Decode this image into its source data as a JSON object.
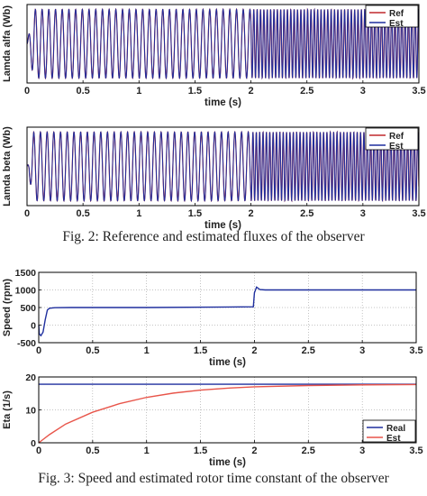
{
  "captions": {
    "fig2": "Fig. 2: Reference and estimated fluxes of the observer",
    "fig3": "Fig. 3: Speed and estimated rotor time constant of the observer"
  },
  "colors": {
    "ref": "#c0282d",
    "est": "#1f2f9e",
    "real": "#1f2f9e",
    "eta_est": "#e8554a",
    "axis": "#000000",
    "grid": "#8a8a8a"
  },
  "chart_data": [
    {
      "type": "line",
      "xlabel": "time (s)",
      "ylabel": "Lamda alfa (Wb)",
      "xlim": [
        0,
        3.5
      ],
      "ylim": [
        -0.65,
        0.65
      ],
      "x_ticks": [
        "0",
        "0.5",
        "1",
        "1.5",
        "2",
        "2.5",
        "3",
        "3.5"
      ],
      "y_ticks": [],
      "grid": false,
      "legend": "top-right",
      "legend_entries": [
        "Ref",
        "Est"
      ],
      "signal": {
        "kind": "sinusoid",
        "amplitude_wb": 0.57,
        "freq_hz_before": 16.7,
        "freq_hz_after": 33.3,
        "freq_step_time_s": 2.0,
        "phase": "sin"
      },
      "series": [
        {
          "name": "Ref",
          "color": "#c0282d"
        },
        {
          "name": "Est",
          "color": "#1f2f9e"
        }
      ]
    },
    {
      "type": "line",
      "xlabel": "time (s)",
      "ylabel": "Lamda beta (Wb)",
      "xlim": [
        0,
        3.5
      ],
      "ylim": [
        -0.65,
        0.65
      ],
      "x_ticks": [
        "0",
        "0.5",
        "1",
        "1.5",
        "2",
        "2.5",
        "3",
        "3.5"
      ],
      "y_ticks": [],
      "grid": false,
      "legend": "top-right",
      "legend_entries": [
        "Ref",
        "Est"
      ],
      "signal": {
        "kind": "sinusoid",
        "amplitude_wb": 0.57,
        "freq_hz_before": 16.7,
        "freq_hz_after": 33.3,
        "freq_step_time_s": 2.0,
        "phase": "cos"
      },
      "series": [
        {
          "name": "Ref",
          "color": "#c0282d"
        },
        {
          "name": "Est",
          "color": "#1f2f9e"
        }
      ]
    },
    {
      "type": "line",
      "xlabel": "time (s)",
      "ylabel": "Speed (rpm)",
      "xlim": [
        0,
        3.5
      ],
      "ylim": [
        -500,
        1500
      ],
      "x_ticks": [
        "0",
        "0.5",
        "1",
        "1.5",
        "2",
        "2.5",
        "3",
        "3.5"
      ],
      "y_ticks": [
        "-500",
        "0",
        "500",
        "1000",
        "1500"
      ],
      "grid": true,
      "series": [
        {
          "name": "",
          "color": "#1f2f9e",
          "x": [
            0,
            0.005,
            0.02,
            0.04,
            0.06,
            0.08,
            0.1,
            0.15,
            0.3,
            1.0,
            1.99,
            2.0,
            2.02,
            2.05,
            2.1,
            3.5
          ],
          "y": [
            0,
            -250,
            -300,
            -200,
            150,
            430,
            480,
            495,
            500,
            500,
            520,
            920,
            1080,
            1010,
            1000,
            1000
          ]
        }
      ]
    },
    {
      "type": "line",
      "xlabel": "time (s)",
      "ylabel": "Eta (1/s)",
      "xlim": [
        0,
        3.5
      ],
      "ylim": [
        0,
        20
      ],
      "x_ticks": [
        "0",
        "0.5",
        "1",
        "1.5",
        "2",
        "2.5",
        "3",
        "3.5"
      ],
      "y_ticks": [
        "0",
        "10",
        "20"
      ],
      "grid": true,
      "legend": "bottom-right",
      "legend_entries": [
        "Real",
        "Est"
      ],
      "series": [
        {
          "name": "Real",
          "color": "#1f2f9e",
          "x": [
            0,
            3.5
          ],
          "y": [
            17.8,
            17.8
          ]
        },
        {
          "name": "Est",
          "color": "#e8554a",
          "x": [
            0,
            0.1,
            0.25,
            0.5,
            0.75,
            1.0,
            1.25,
            1.5,
            1.75,
            2.0,
            2.5,
            3.0,
            3.5
          ],
          "y": [
            0,
            2.5,
            5.7,
            9.3,
            11.9,
            13.8,
            15.1,
            16.0,
            16.6,
            17.0,
            17.4,
            17.6,
            17.7
          ]
        }
      ]
    }
  ]
}
